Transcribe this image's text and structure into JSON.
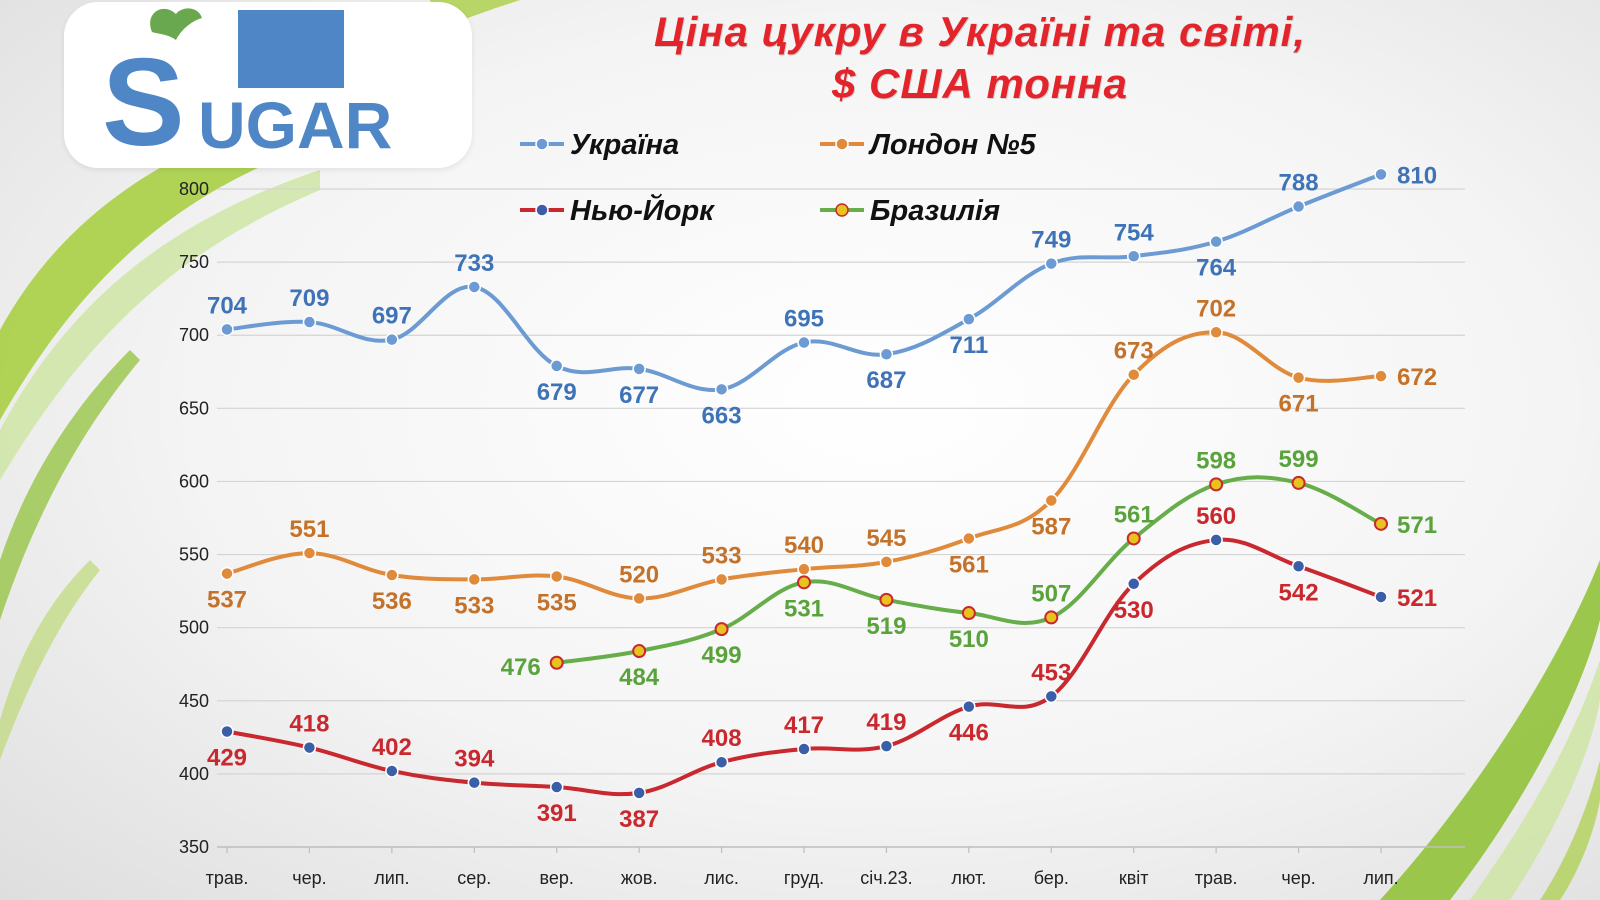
{
  "logo": {
    "text": "SUGAR",
    "letter_s": "S",
    "rest": "UGAR",
    "green": "#7bbf2a",
    "blue": "#4f86c6"
  },
  "chart_data": {
    "type": "line",
    "title_lines": [
      "Ціна цукру в Україні та світі,",
      "$ США тонна"
    ],
    "xlabel": "",
    "ylabel": "",
    "categories": [
      "трав.",
      "чер.",
      "лип.",
      "сер.",
      "вер.",
      "жов.",
      "лис.",
      "груд.",
      "січ.23.",
      "лют.",
      "бер.",
      "квіт",
      "трав.",
      "чер.",
      "лип."
    ],
    "yticks": [
      "350",
      "400",
      "450",
      "500",
      "550",
      "600",
      "650",
      "700",
      "750",
      "800"
    ],
    "ylim": [
      350,
      800
    ],
    "grid": true,
    "legend_position": "top",
    "series": [
      {
        "name": "Україна",
        "color": "#6b9bd2",
        "label_color": "#3f73b8",
        "marker_fill": "#6b9bd2",
        "values": [
          704,
          709,
          697,
          733,
          679,
          677,
          663,
          695,
          687,
          711,
          749,
          754,
          764,
          788,
          810
        ]
      },
      {
        "name": "Лондон №5",
        "color": "#e08a3c",
        "label_color": "#c4722a",
        "marker_fill": "#e08a3c",
        "values": [
          537,
          551,
          536,
          533,
          535,
          520,
          533,
          540,
          545,
          561,
          587,
          673,
          702,
          671,
          672
        ]
      },
      {
        "name": "Нью-Йорк",
        "color": "#c8282e",
        "label_color": "#c8282e",
        "marker_fill": "#3a5fa8",
        "values": [
          429,
          418,
          402,
          394,
          391,
          387,
          408,
          417,
          419,
          446,
          453,
          530,
          560,
          542,
          521
        ]
      },
      {
        "name": "Бразилія",
        "color": "#67ad4a",
        "label_color": "#5aa33c",
        "marker_fill": "#e8c21e",
        "values": [
          null,
          null,
          null,
          null,
          476,
          484,
          499,
          531,
          519,
          510,
          507,
          561,
          598,
          599,
          571
        ]
      }
    ]
  }
}
